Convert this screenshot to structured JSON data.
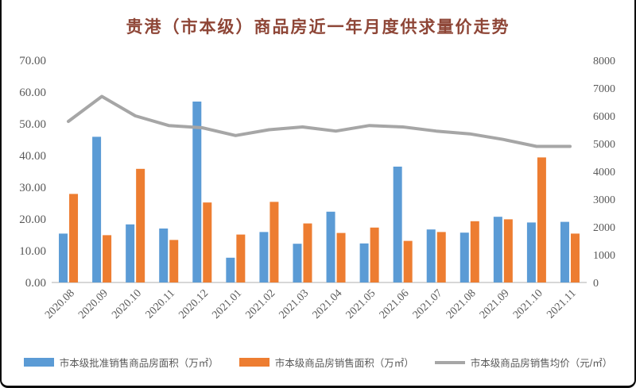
{
  "title": "贵港（市本级）商品房近一年月度供求量价走势",
  "colors": {
    "bar_approved": "#5B9BD5",
    "bar_sold": "#ED7D31",
    "line_price": "#A6A6A6",
    "axis_line": "#BFBFBF",
    "tick_text": "#595959",
    "title_text": "#8E4637"
  },
  "chart_data": {
    "type": "bar",
    "title": "贵港（市本级）商品房近一年月度供求量价走势",
    "categories": [
      "2020.08",
      "2020.09",
      "2020.10",
      "2020.11",
      "2020.12",
      "2021.01",
      "2021.02",
      "2021.03",
      "2021.04",
      "2021.05",
      "2021.06",
      "2021.07",
      "2021.08",
      "2021.09",
      "2021.10",
      "2021.11"
    ],
    "series": [
      {
        "name": "市本级批准销售商品房面积（万㎡）",
        "type": "bar",
        "axis": "left",
        "color": "#5B9BD5",
        "values": [
          15.4,
          45.9,
          18.3,
          17.0,
          57.0,
          7.8,
          15.9,
          12.2,
          22.3,
          12.3,
          36.5,
          16.7,
          15.7,
          20.7,
          18.9,
          19.1
        ]
      },
      {
        "name": "市本级商品房销售面积（万㎡）",
        "type": "bar",
        "axis": "left",
        "color": "#ED7D31",
        "values": [
          27.9,
          14.9,
          35.8,
          13.4,
          25.2,
          15.1,
          25.4,
          18.6,
          15.6,
          17.3,
          13.1,
          15.9,
          19.3,
          19.9,
          39.4,
          15.4
        ]
      },
      {
        "name": "市本级商品房销售均价（元/㎡）",
        "type": "line",
        "axis": "right",
        "color": "#A6A6A6",
        "values": [
          5800,
          6700,
          6000,
          5650,
          5570,
          5290,
          5500,
          5600,
          5450,
          5650,
          5600,
          5450,
          5350,
          5150,
          4900,
          4900
        ]
      }
    ],
    "left_axis": {
      "min": 0,
      "max": 70,
      "step": 10,
      "tick_labels": [
        "0.00",
        "10.00",
        "20.00",
        "30.00",
        "40.00",
        "50.00",
        "60.00",
        "70.00"
      ]
    },
    "right_axis": {
      "min": 0,
      "max": 8000,
      "step": 1000,
      "tick_labels": [
        "0",
        "1000",
        "2000",
        "3000",
        "4000",
        "5000",
        "6000",
        "7000",
        "8000"
      ]
    },
    "grid": false,
    "legend_position": "bottom",
    "x_tick_rotation": -45
  }
}
